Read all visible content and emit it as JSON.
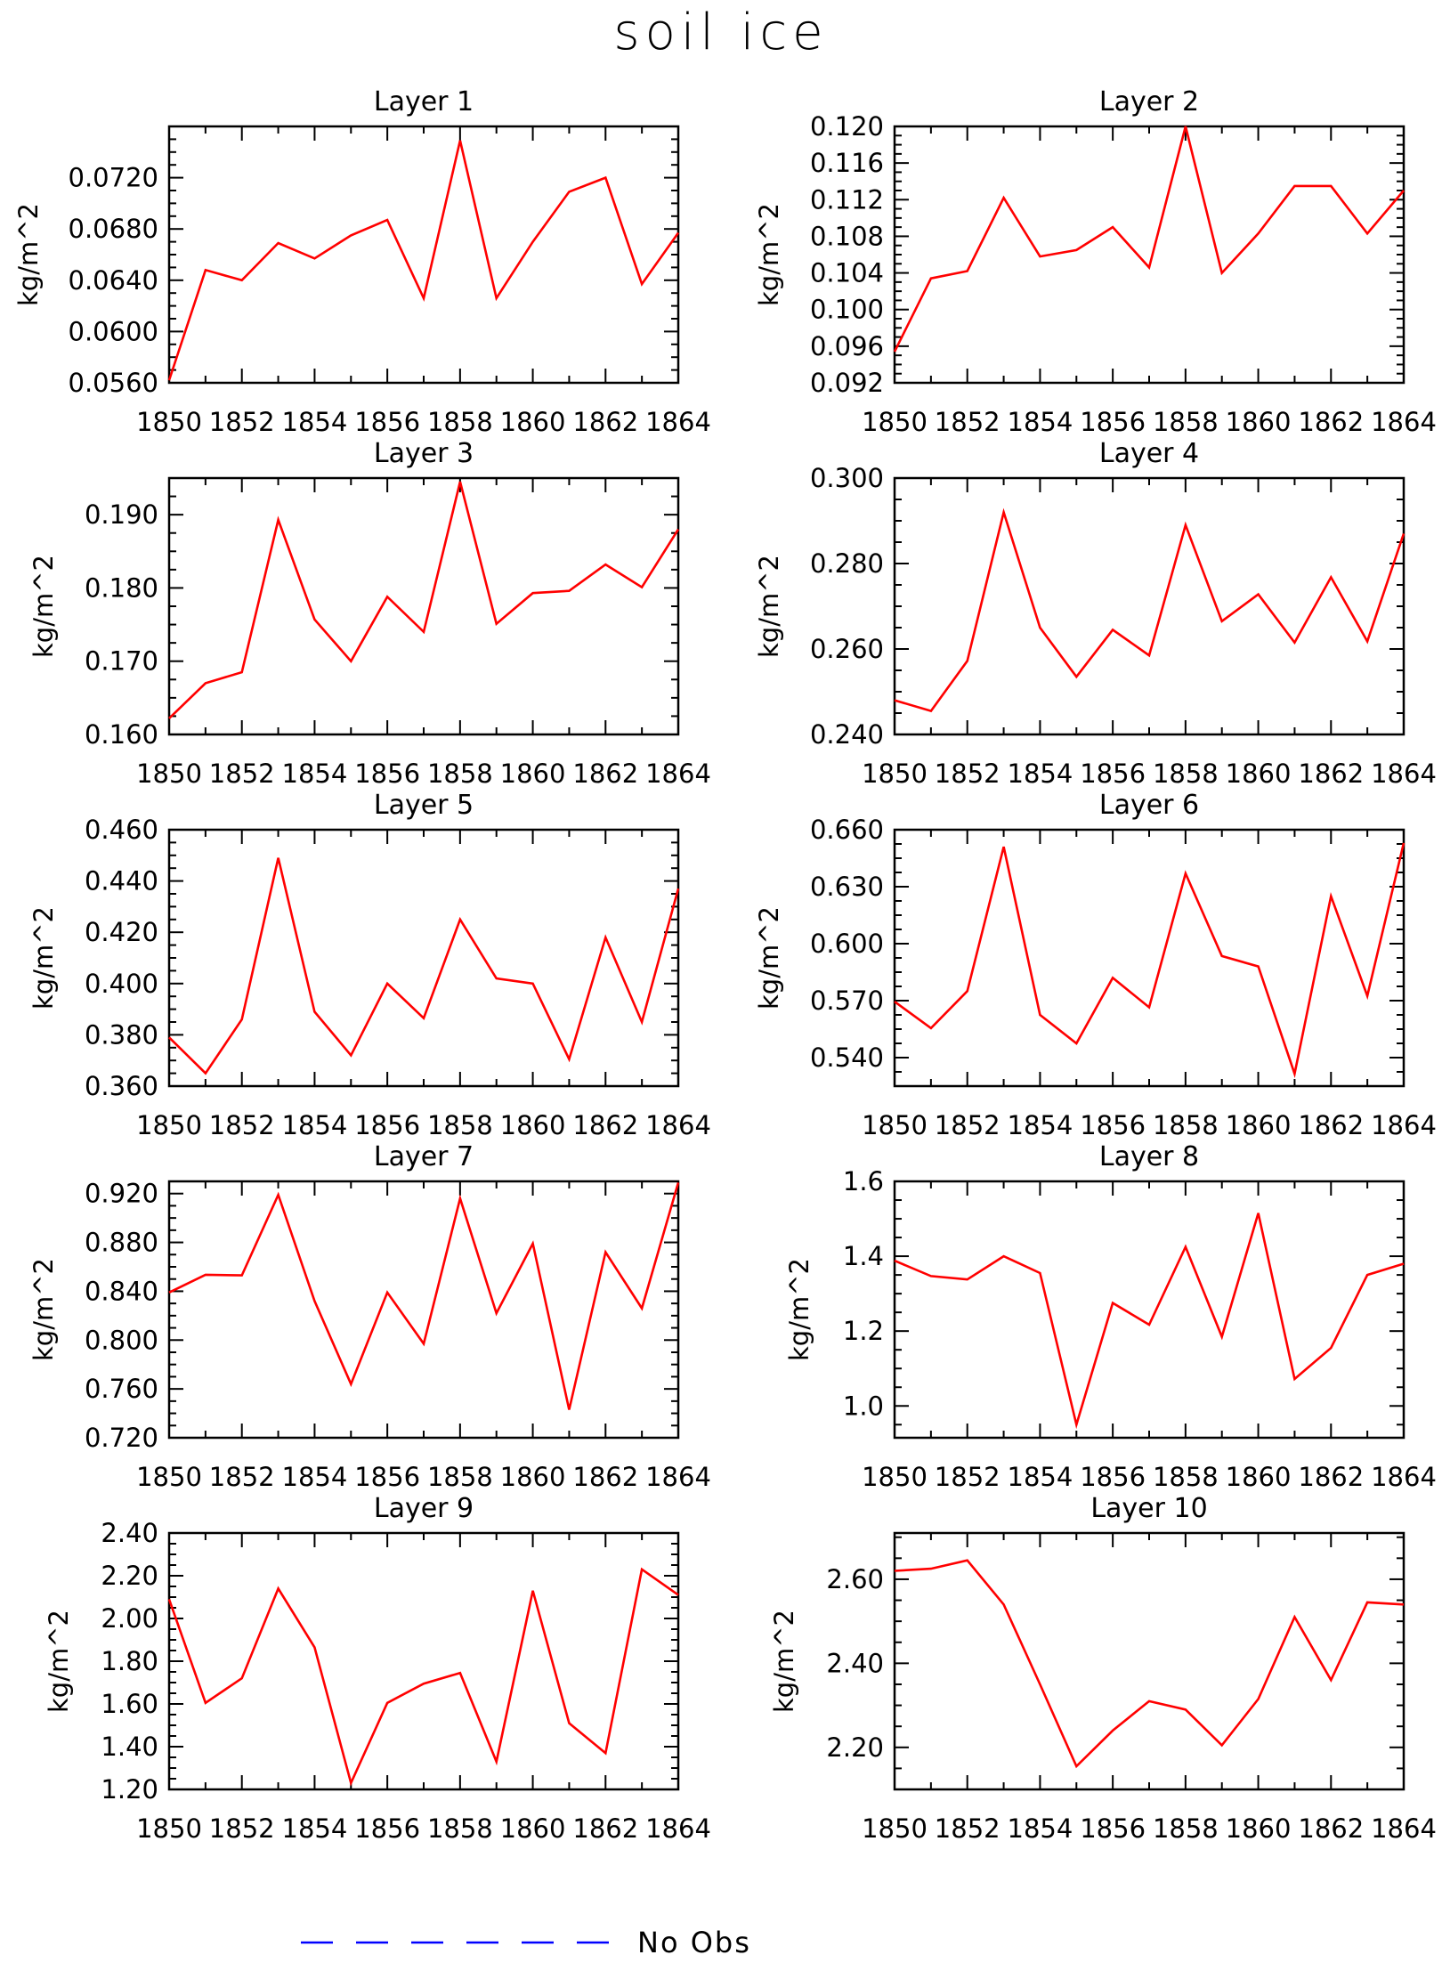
{
  "title": "soil ice",
  "legend": {
    "label": "No Obs",
    "color": "#0000ff"
  },
  "line_color": "#ff0000",
  "chart_data": [
    {
      "type": "line",
      "title": "Layer 1",
      "ylabel": "kg/m^2",
      "x": [
        1850,
        1851,
        1852,
        1853,
        1854,
        1855,
        1856,
        1857,
        1858,
        1859,
        1860,
        1861,
        1862,
        1863,
        1864
      ],
      "x_ticks": [
        "1850",
        "1852",
        "1854",
        "1856",
        "1858",
        "1860",
        "1862",
        "1864"
      ],
      "y_ticks": [
        "0.0560",
        "0.0600",
        "0.0640",
        "0.0680",
        "0.0720"
      ],
      "ylim": [
        0.056,
        0.076
      ],
      "series": [
        {
          "values": [
            0.0562,
            0.0648,
            0.064,
            0.0669,
            0.0657,
            0.0675,
            0.0687,
            0.0626,
            0.0749,
            0.0626,
            0.067,
            0.0709,
            0.072,
            0.0637,
            0.0677
          ]
        }
      ]
    },
    {
      "type": "line",
      "title": "Layer 2",
      "ylabel": "kg/m^2",
      "x": [
        1850,
        1851,
        1852,
        1853,
        1854,
        1855,
        1856,
        1857,
        1858,
        1859,
        1860,
        1861,
        1862,
        1863,
        1864
      ],
      "x_ticks": [
        "1850",
        "1852",
        "1854",
        "1856",
        "1858",
        "1860",
        "1862",
        "1864"
      ],
      "y_ticks": [
        "0.092",
        "0.096",
        "0.100",
        "0.104",
        "0.108",
        "0.112",
        "0.116",
        "0.120"
      ],
      "ylim": [
        0.092,
        0.12
      ],
      "series": [
        {
          "values": [
            0.0954,
            0.1034,
            0.1042,
            0.1122,
            0.1058,
            0.1065,
            0.109,
            0.1046,
            0.12,
            0.104,
            0.1083,
            0.1135,
            0.1135,
            0.1083,
            0.113
          ]
        }
      ]
    },
    {
      "type": "line",
      "title": "Layer 3",
      "ylabel": "kg/m^2",
      "x": [
        1850,
        1851,
        1852,
        1853,
        1854,
        1855,
        1856,
        1857,
        1858,
        1859,
        1860,
        1861,
        1862,
        1863,
        1864
      ],
      "x_ticks": [
        "1850",
        "1852",
        "1854",
        "1856",
        "1858",
        "1860",
        "1862",
        "1864"
      ],
      "y_ticks": [
        "0.160",
        "0.170",
        "0.180",
        "0.190"
      ],
      "ylim": [
        0.16,
        0.195
      ],
      "series": [
        {
          "values": [
            0.1622,
            0.167,
            0.1685,
            0.1893,
            0.1757,
            0.17,
            0.1788,
            0.174,
            0.1945,
            0.1751,
            0.1793,
            0.1796,
            0.1832,
            0.1801,
            0.188
          ]
        }
      ]
    },
    {
      "type": "line",
      "title": "Layer 4",
      "ylabel": "kg/m^2",
      "x": [
        1850,
        1851,
        1852,
        1853,
        1854,
        1855,
        1856,
        1857,
        1858,
        1859,
        1860,
        1861,
        1862,
        1863,
        1864
      ],
      "x_ticks": [
        "1850",
        "1852",
        "1854",
        "1856",
        "1858",
        "1860",
        "1862",
        "1864"
      ],
      "y_ticks": [
        "0.240",
        "0.260",
        "0.280",
        "0.300"
      ],
      "ylim": [
        0.24,
        0.3
      ],
      "series": [
        {
          "values": [
            0.248,
            0.2455,
            0.2572,
            0.292,
            0.265,
            0.2535,
            0.2645,
            0.2585,
            0.289,
            0.2665,
            0.2728,
            0.2615,
            0.2768,
            0.2618,
            0.287
          ]
        }
      ]
    },
    {
      "type": "line",
      "title": "Layer 5",
      "ylabel": "kg/m^2",
      "x": [
        1850,
        1851,
        1852,
        1853,
        1854,
        1855,
        1856,
        1857,
        1858,
        1859,
        1860,
        1861,
        1862,
        1863,
        1864
      ],
      "x_ticks": [
        "1850",
        "1852",
        "1854",
        "1856",
        "1858",
        "1860",
        "1862",
        "1864"
      ],
      "y_ticks": [
        "0.360",
        "0.380",
        "0.400",
        "0.420",
        "0.440",
        "0.460"
      ],
      "ylim": [
        0.36,
        0.46
      ],
      "series": [
        {
          "values": [
            0.379,
            0.365,
            0.386,
            0.449,
            0.389,
            0.372,
            0.4,
            0.3865,
            0.425,
            0.402,
            0.4,
            0.3705,
            0.418,
            0.385,
            0.437
          ]
        }
      ]
    },
    {
      "type": "line",
      "title": "Layer 6",
      "ylabel": "kg/m^2",
      "x": [
        1850,
        1851,
        1852,
        1853,
        1854,
        1855,
        1856,
        1857,
        1858,
        1859,
        1860,
        1861,
        1862,
        1863,
        1864
      ],
      "x_ticks": [
        "1850",
        "1852",
        "1854",
        "1856",
        "1858",
        "1860",
        "1862",
        "1864"
      ],
      "y_ticks": [
        "0.540",
        "0.570",
        "0.600",
        "0.630",
        "0.660"
      ],
      "ylim": [
        0.525,
        0.66
      ],
      "series": [
        {
          "values": [
            0.5695,
            0.5555,
            0.575,
            0.651,
            0.5625,
            0.5475,
            0.582,
            0.5665,
            0.637,
            0.5935,
            0.588,
            0.5315,
            0.625,
            0.5725,
            0.653
          ]
        }
      ]
    },
    {
      "type": "line",
      "title": "Layer 7",
      "ylabel": "kg/m^2",
      "x": [
        1850,
        1851,
        1852,
        1853,
        1854,
        1855,
        1856,
        1857,
        1858,
        1859,
        1860,
        1861,
        1862,
        1863,
        1864
      ],
      "x_ticks": [
        "1850",
        "1852",
        "1854",
        "1856",
        "1858",
        "1860",
        "1862",
        "1864"
      ],
      "y_ticks": [
        "0.720",
        "0.760",
        "0.800",
        "0.840",
        "0.880",
        "0.920"
      ],
      "ylim": [
        0.72,
        0.93
      ],
      "series": [
        {
          "values": [
            0.839,
            0.8535,
            0.853,
            0.919,
            0.832,
            0.764,
            0.839,
            0.797,
            0.916,
            0.822,
            0.879,
            0.743,
            0.872,
            0.826,
            0.929
          ]
        }
      ]
    },
    {
      "type": "line",
      "title": "Layer 8",
      "ylabel": "kg/m^2",
      "x": [
        1850,
        1851,
        1852,
        1853,
        1854,
        1855,
        1856,
        1857,
        1858,
        1859,
        1860,
        1861,
        1862,
        1863,
        1864
      ],
      "x_ticks": [
        "1850",
        "1852",
        "1854",
        "1856",
        "1858",
        "1860",
        "1862",
        "1864"
      ],
      "y_ticks": [
        "1.0",
        "1.2",
        "1.4",
        "1.6"
      ],
      "ylim": [
        0.915,
        1.6
      ],
      "series": [
        {
          "values": [
            1.388,
            1.347,
            1.338,
            1.4,
            1.355,
            0.95,
            1.275,
            1.217,
            1.425,
            1.185,
            1.515,
            1.072,
            1.155,
            1.35,
            1.38
          ]
        }
      ]
    },
    {
      "type": "line",
      "title": "Layer 9",
      "ylabel": "kg/m^2",
      "x": [
        1850,
        1851,
        1852,
        1853,
        1854,
        1855,
        1856,
        1857,
        1858,
        1859,
        1860,
        1861,
        1862,
        1863,
        1864
      ],
      "x_ticks": [
        "1850",
        "1852",
        "1854",
        "1856",
        "1858",
        "1860",
        "1862",
        "1864"
      ],
      "y_ticks": [
        "1.20",
        "1.40",
        "1.60",
        "1.80",
        "2.00",
        "2.20",
        "2.40"
      ],
      "ylim": [
        1.2,
        2.4
      ],
      "series": [
        {
          "values": [
            2.09,
            1.605,
            1.72,
            2.14,
            1.865,
            1.23,
            1.605,
            1.695,
            1.745,
            1.33,
            2.13,
            1.51,
            1.37,
            2.23,
            2.11
          ]
        }
      ]
    },
    {
      "type": "line",
      "title": "Layer 10",
      "ylabel": "kg/m^2",
      "x": [
        1850,
        1851,
        1852,
        1853,
        1854,
        1855,
        1856,
        1857,
        1858,
        1859,
        1860,
        1861,
        1862,
        1863,
        1864
      ],
      "x_ticks": [
        "1850",
        "1852",
        "1854",
        "1856",
        "1858",
        "1860",
        "1862",
        "1864"
      ],
      "y_ticks": [
        "2.20",
        "2.40",
        "2.60"
      ],
      "ylim": [
        2.1,
        2.71
      ],
      "series": [
        {
          "values": [
            2.62,
            2.625,
            2.645,
            2.54,
            2.35,
            2.155,
            2.24,
            2.31,
            2.29,
            2.205,
            2.315,
            2.51,
            2.36,
            2.545,
            2.54
          ]
        }
      ]
    }
  ]
}
